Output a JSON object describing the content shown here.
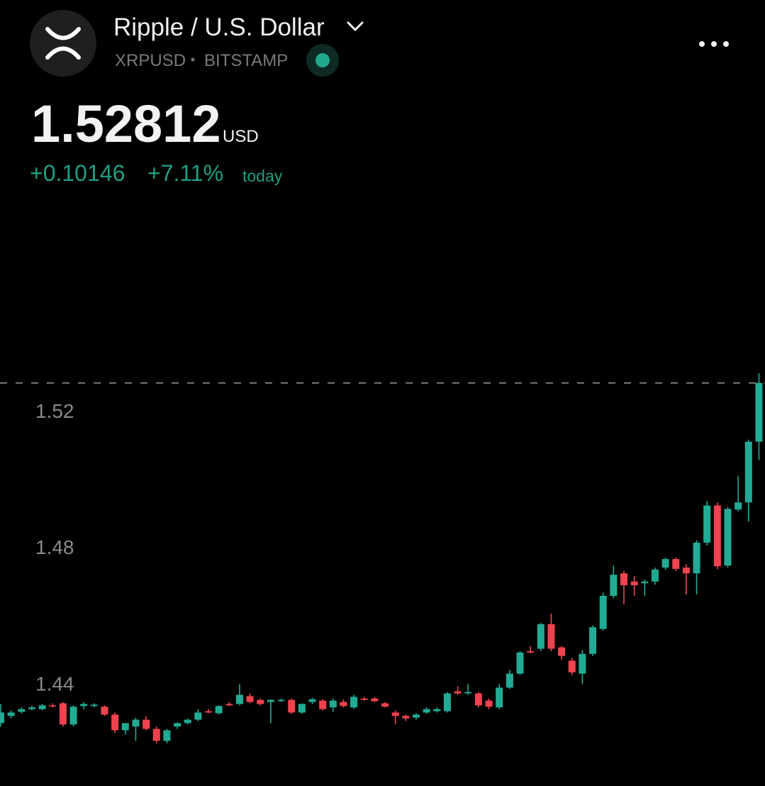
{
  "header": {
    "title": "Ripple / U.S. Dollar",
    "symbol": "XRPUSD",
    "exchange": "BITSTAMP",
    "price": "1.52812",
    "currency": "USD",
    "change": "+0.10146",
    "change_percent": "+7.11%",
    "period": "today"
  },
  "chart_data": {
    "type": "candlestick",
    "up_color": "#22ab94",
    "down_color": "#f0434f",
    "ylim": [
      1.411,
      1.578
    ],
    "yticks": [
      1.44,
      1.48,
      1.52
    ],
    "grid": false,
    "open": [
      1.4284,
      1.4305,
      1.4317,
      1.4325,
      1.4325,
      1.4336,
      1.4342,
      1.428,
      1.4334,
      1.4334,
      1.4332,
      1.4309,
      1.4263,
      1.4274,
      1.4294,
      1.4267,
      1.4232,
      1.4274,
      1.4284,
      1.4294,
      1.4319,
      1.4313,
      1.434,
      1.434,
      1.4363,
      1.4352,
      1.4346,
      1.435,
      1.4352,
      1.4315,
      1.4346,
      1.435,
      1.433,
      1.4346,
      1.433,
      1.4356,
      1.4356,
      1.4342,
      1.4315,
      1.4305,
      1.43,
      1.4315,
      1.4319,
      1.4319,
      1.4377,
      1.4371,
      1.4371,
      1.435,
      1.433,
      1.4388,
      1.4429,
      1.4495,
      1.4502,
      1.4574,
      1.4506,
      1.4467,
      1.4429,
      1.4487,
      1.456,
      1.4657,
      1.4723,
      1.4699,
      1.4694,
      1.4699,
      1.474,
      1.4765,
      1.474,
      1.4723,
      1.4813,
      1.4922,
      1.4746,
      1.491,
      1.4931,
      1.5109
    ],
    "high": [
      1.434,
      1.4321,
      1.433,
      1.4334,
      1.434,
      1.4342,
      1.4346,
      1.4336,
      1.4346,
      1.4342,
      1.4336,
      1.4315,
      1.4284,
      1.43,
      1.4305,
      1.4274,
      1.4267,
      1.4286,
      1.4298,
      1.4325,
      1.4325,
      1.4336,
      1.4346,
      1.4398,
      1.4371,
      1.4356,
      1.4354,
      1.4356,
      1.4356,
      1.4342,
      1.4358,
      1.4354,
      1.4356,
      1.4354,
      1.4367,
      1.4361,
      1.4361,
      1.4346,
      1.4321,
      1.4309,
      1.4313,
      1.433,
      1.433,
      1.4375,
      1.4392,
      1.4398,
      1.4375,
      1.4356,
      1.4398,
      1.444,
      1.4495,
      1.451,
      1.4578,
      1.4605,
      1.451,
      1.4475,
      1.4498,
      1.457,
      1.4667,
      1.4746,
      1.473,
      1.4715,
      1.4705,
      1.474,
      1.477,
      1.477,
      1.475,
      1.482,
      1.4935,
      1.4931,
      1.4918,
      1.5009,
      1.5115,
      1.531
    ],
    "low": [
      1.4274,
      1.4298,
      1.4313,
      1.4321,
      1.4321,
      1.433,
      1.4274,
      1.4274,
      1.4325,
      1.433,
      1.4305,
      1.4255,
      1.425,
      1.4232,
      1.4263,
      1.4225,
      1.4225,
      1.4267,
      1.428,
      1.429,
      1.4313,
      1.4309,
      1.4334,
      1.4336,
      1.4342,
      1.4336,
      1.4284,
      1.4346,
      1.4311,
      1.4311,
      1.434,
      1.4321,
      1.4317,
      1.433,
      1.4325,
      1.435,
      1.4346,
      1.433,
      1.428,
      1.429,
      1.4294,
      1.4311,
      1.4315,
      1.4315,
      1.4367,
      1.4367,
      1.433,
      1.4325,
      1.4325,
      1.4384,
      1.4425,
      1.4488,
      1.4495,
      1.4495,
      1.447,
      1.4425,
      1.4398,
      1.4481,
      1.4555,
      1.465,
      1.4632,
      1.4657,
      1.4657,
      1.469,
      1.4734,
      1.473,
      1.4661,
      1.4661,
      1.4805,
      1.4735,
      1.474,
      1.4905,
      1.4875,
      1.5055
    ],
    "close": [
      1.4315,
      1.4315,
      1.4325,
      1.433,
      1.4336,
      1.4334,
      1.428,
      1.4332,
      1.434,
      1.4338,
      1.4309,
      1.4263,
      1.4284,
      1.4294,
      1.4267,
      1.4232,
      1.4263,
      1.4284,
      1.4294,
      1.4315,
      1.4315,
      1.4334,
      1.4336,
      1.4367,
      1.4346,
      1.434,
      1.4352,
      1.4352,
      1.4315,
      1.434,
      1.4354,
      1.4325,
      1.435,
      1.4334,
      1.4361,
      1.4352,
      1.4348,
      1.4332,
      1.4305,
      1.4298,
      1.4309,
      1.4325,
      1.4325,
      1.4371,
      1.4371,
      1.4375,
      1.4336,
      1.4332,
      1.4388,
      1.4429,
      1.4491,
      1.4491,
      1.4574,
      1.4502,
      1.4481,
      1.4433,
      1.4487,
      1.4565,
      1.4657,
      1.4719,
      1.4688,
      1.4688,
      1.4699,
      1.4734,
      1.4765,
      1.4736,
      1.4723,
      1.4813,
      1.4922,
      1.4744,
      1.4912,
      1.4931,
      1.5109,
      1.52812
    ]
  }
}
